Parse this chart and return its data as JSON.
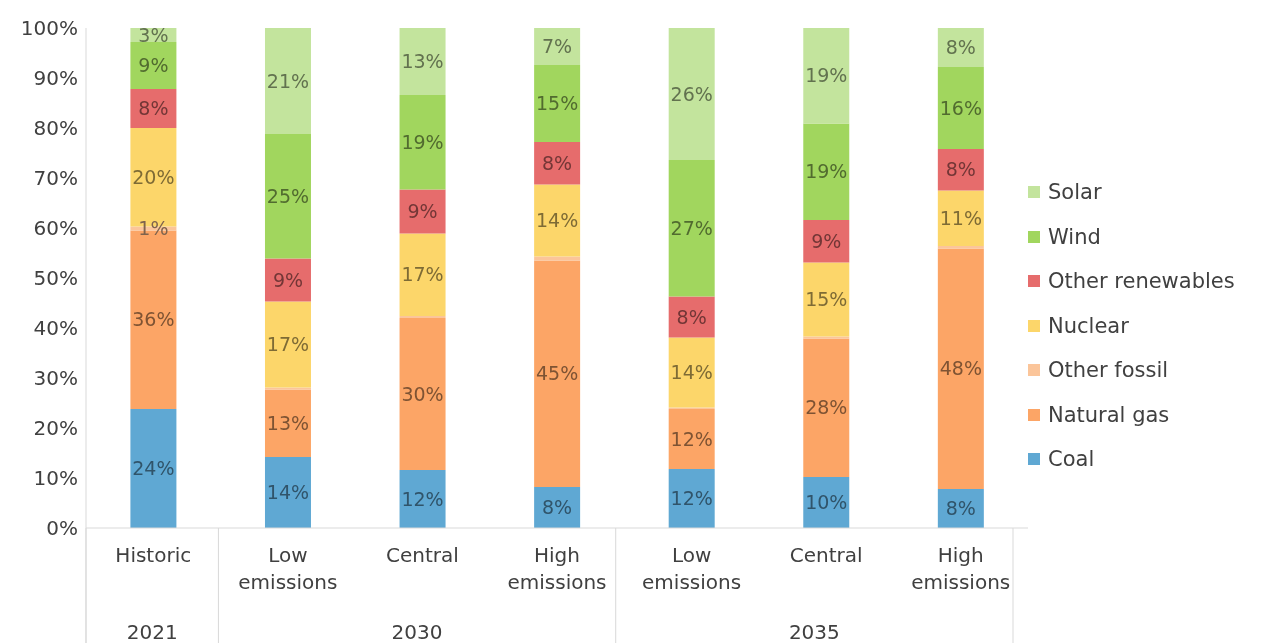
{
  "chart_data": {
    "type": "bar",
    "stacked": true,
    "categories": [
      "Historic",
      "Low emissions",
      "Central",
      "High emissions",
      "Low emissions",
      "Central",
      "High emissions"
    ],
    "annotations": [
      "2021",
      "2030",
      "2035"
    ],
    "series": [
      {
        "name": "Coal",
        "color": "#5fa8d3",
        "values": [
          23.8,
          14.2,
          11.6,
          8.2,
          11.8,
          10.2,
          7.8
        ],
        "value_labels": [
          "24%",
          "14%",
          "12%",
          "8%",
          "12%",
          "10%",
          "8%"
        ]
      },
      {
        "name": "Natural gas",
        "color": "#fca566",
        "values": [
          35.7,
          13.5,
          30.4,
          45.3,
          12.0,
          27.7,
          48.1
        ],
        "value_labels": [
          "36%",
          "13%",
          "30%",
          "45%",
          "12%",
          "28%",
          "48%"
        ]
      },
      {
        "name": "Other fossil",
        "color": "#fbc59a",
        "values": [
          0.8,
          0.4,
          0.4,
          0.8,
          0.3,
          0.4,
          0.5
        ],
        "value_labels": [
          "1%",
          null,
          null,
          null,
          null,
          null,
          null
        ]
      },
      {
        "name": "Nuclear",
        "color": "#fcd66a",
        "values": [
          19.7,
          17.2,
          16.5,
          14.4,
          14.0,
          14.8,
          11.1
        ],
        "value_labels": [
          "20%",
          "17%",
          "17%",
          "14%",
          "14%",
          "15%",
          "11%"
        ]
      },
      {
        "name": "Other renewables",
        "color": "#e66c6c",
        "values": [
          7.8,
          8.6,
          8.8,
          8.5,
          8.2,
          8.5,
          8.3
        ],
        "value_labels": [
          "8%",
          "9%",
          "9%",
          "8%",
          "8%",
          "9%",
          "8%"
        ]
      },
      {
        "name": "Wind",
        "color": "#a1d65e",
        "values": [
          9.4,
          24.9,
          18.9,
          15.4,
          27.3,
          19.3,
          16.4
        ],
        "value_labels": [
          "9%",
          "25%",
          "19%",
          "15%",
          "27%",
          "19%",
          "16%"
        ]
      },
      {
        "name": "Solar",
        "color": "#c3e49d",
        "values": [
          2.8,
          21.2,
          13.4,
          7.4,
          26.4,
          19.1,
          7.8
        ],
        "value_labels": [
          "3%",
          "21%",
          "13%",
          "7%",
          "26%",
          "19%",
          "8%"
        ]
      }
    ],
    "ylim": [
      0,
      100
    ],
    "yticks": [
      {
        "value": 0,
        "label": "0%"
      },
      {
        "value": 10,
        "label": "10%"
      },
      {
        "value": 20,
        "label": "20%"
      },
      {
        "value": 30,
        "label": "30%"
      },
      {
        "value": 40,
        "label": "40%"
      },
      {
        "value": 50,
        "label": "50%"
      },
      {
        "value": 60,
        "label": "60%"
      },
      {
        "value": 70,
        "label": "70%"
      },
      {
        "value": 80,
        "label": "80%"
      },
      {
        "value": 90,
        "label": "90%"
      },
      {
        "value": 100,
        "label": "100%"
      }
    ],
    "grid": false,
    "legend": "right"
  }
}
